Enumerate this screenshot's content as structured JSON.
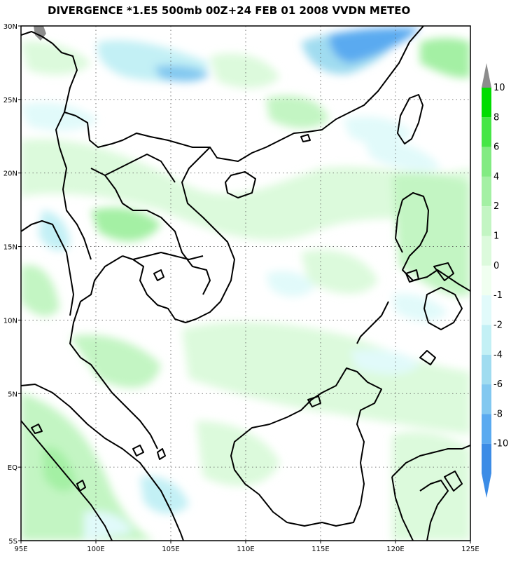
{
  "title": "DIVERGENCE *1.E5 500mb 00Z+24 FEB 01 2008 VVDN METEO",
  "map": {
    "lon_ticks": [
      "95E",
      "100E",
      "105E",
      "110E",
      "115E",
      "120E",
      "125E"
    ],
    "lat_ticks": [
      "30N",
      "25N",
      "20N",
      "15N",
      "10N",
      "5N",
      "EQ",
      "5S"
    ],
    "lon_values": [
      95,
      100,
      105,
      110,
      115,
      120,
      125
    ],
    "lat_values": [
      30,
      25,
      20,
      15,
      10,
      5,
      0,
      -5
    ],
    "lon_range": [
      95,
      125
    ],
    "lat_range": [
      -5,
      30
    ],
    "grid": true
  },
  "colorbar": {
    "levels": [
      {
        "label": "10",
        "color": "#00dc00"
      },
      {
        "label": "8",
        "color": "#46e646"
      },
      {
        "label": "6",
        "color": "#82eb82"
      },
      {
        "label": "4",
        "color": "#a4f0a4"
      },
      {
        "label": "2",
        "color": "#c3f5c3"
      },
      {
        "label": "1",
        "color": "#dcfadc"
      },
      {
        "label": "0",
        "color": "#f0fff0"
      },
      {
        "label": "-1",
        "color": "#e1fafa"
      },
      {
        "label": "-2",
        "color": "#c3f0f5"
      },
      {
        "label": "-4",
        "color": "#a0dcf0"
      },
      {
        "label": "-6",
        "color": "#82c8f0"
      },
      {
        "label": "-8",
        "color": "#5aaaf0"
      },
      {
        "label": "-10",
        "color": "#3c8ce6"
      }
    ],
    "top_cap_color": "#8c8c8c",
    "bottom_cap_color": "#3c8ce6"
  }
}
